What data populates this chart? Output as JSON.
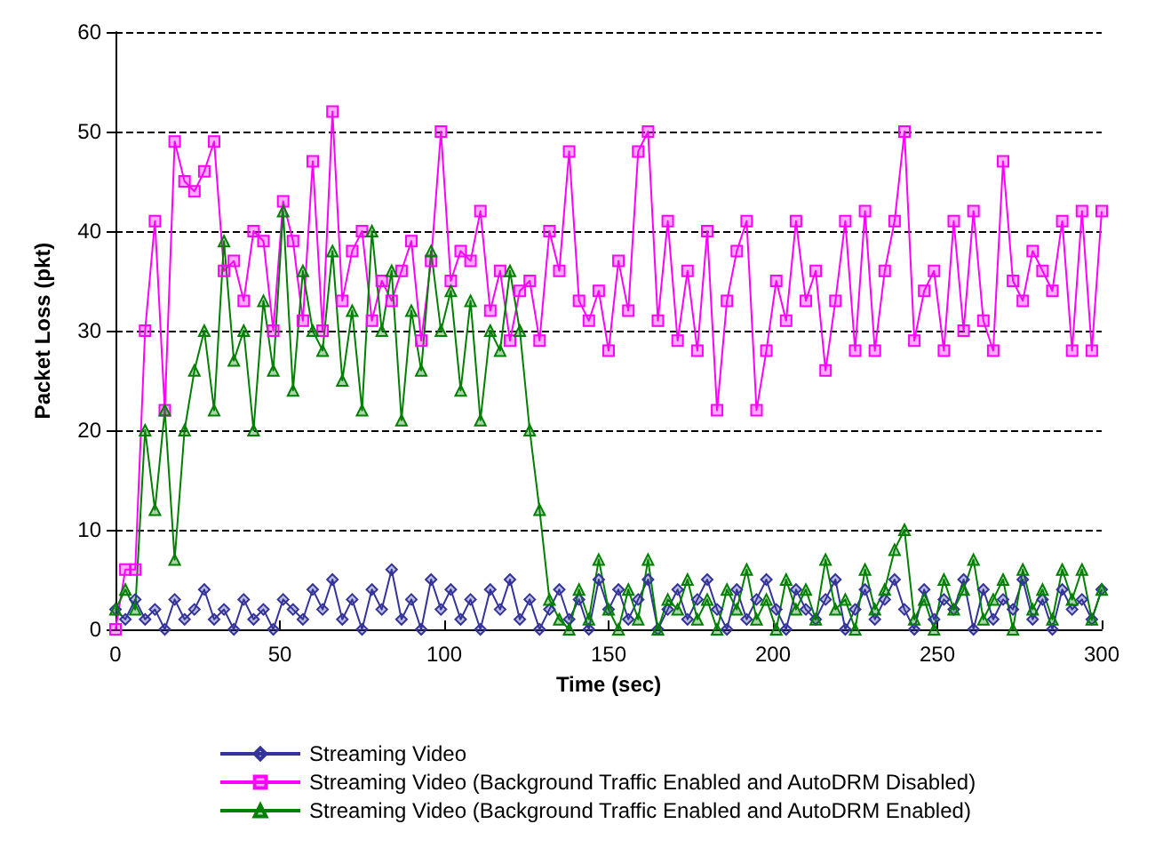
{
  "chart_data": {
    "type": "line",
    "xlabel": "Time (sec)",
    "ylabel": "Packet Loss (pkt)",
    "x": [
      0,
      3,
      6,
      9,
      12,
      15,
      18,
      21,
      24,
      27,
      30,
      33,
      36,
      39,
      42,
      45,
      48,
      51,
      54,
      57,
      60,
      63,
      66,
      69,
      72,
      75,
      78,
      81,
      84,
      87,
      90,
      93,
      96,
      99,
      102,
      105,
      108,
      111,
      114,
      117,
      120,
      123,
      126,
      129,
      132,
      135,
      138,
      141,
      144,
      147,
      150,
      153,
      156,
      159,
      162,
      165,
      168,
      171,
      174,
      177,
      180,
      183,
      186,
      189,
      192,
      195,
      198,
      201,
      204,
      207,
      210,
      213,
      216,
      219,
      222,
      225,
      228,
      231,
      234,
      237,
      240,
      243,
      246,
      249,
      252,
      255,
      258,
      261,
      264,
      267,
      270,
      273,
      276,
      279,
      282,
      285,
      288,
      291,
      294,
      297,
      300
    ],
    "series": [
      {
        "name": "Streaming Video",
        "color": "#333399",
        "marker": "diamond",
        "values": [
          2,
          1,
          3,
          1,
          2,
          0,
          3,
          1,
          2,
          4,
          1,
          2,
          0,
          3,
          1,
          2,
          0,
          3,
          2,
          1,
          4,
          2,
          5,
          1,
          3,
          0,
          4,
          2,
          6,
          1,
          3,
          0,
          5,
          2,
          4,
          1,
          3,
          0,
          4,
          2,
          5,
          1,
          3,
          0,
          2,
          4,
          1,
          3,
          0,
          5,
          2,
          4,
          1,
          3,
          5,
          0,
          2,
          4,
          1,
          3,
          5,
          2,
          0,
          4,
          1,
          3,
          5,
          2,
          0,
          4,
          2,
          1,
          3,
          5,
          0,
          2,
          4,
          1,
          3,
          5,
          2,
          0,
          4,
          1,
          3,
          2,
          5,
          0,
          4,
          1,
          3,
          2,
          5,
          1,
          3,
          0,
          4,
          2,
          3,
          1,
          4
        ]
      },
      {
        "name": "Streaming Video (Background Traffic Enabled and AutoDRM Disabled)",
        "color": "#ff00ff",
        "marker": "square",
        "values": [
          0,
          6,
          6,
          30,
          41,
          22,
          49,
          45,
          44,
          46,
          49,
          36,
          37,
          33,
          40,
          39,
          30,
          43,
          39,
          31,
          47,
          30,
          52,
          33,
          38,
          40,
          31,
          35,
          33,
          36,
          39,
          29,
          37,
          50,
          35,
          38,
          37,
          42,
          32,
          36,
          29,
          34,
          35,
          29,
          40,
          36,
          48,
          33,
          31,
          34,
          28,
          37,
          32,
          48,
          50,
          31,
          41,
          29,
          36,
          28,
          40,
          22,
          33,
          38,
          41,
          22,
          28,
          35,
          31,
          41,
          33,
          36,
          26,
          33,
          41,
          28,
          42,
          28,
          36,
          41,
          50,
          29,
          34,
          36,
          28,
          41,
          30,
          42,
          31,
          28,
          47,
          35,
          33,
          38,
          36,
          34,
          41,
          28,
          42,
          28,
          42
        ]
      },
      {
        "name": "Streaming Video (Background Traffic Enabled and AutoDRM Enabled)",
        "color": "#008000",
        "marker": "triangle",
        "values": [
          2,
          4,
          2,
          20,
          12,
          22,
          7,
          20,
          26,
          30,
          22,
          39,
          27,
          30,
          20,
          33,
          26,
          42,
          24,
          36,
          30,
          28,
          38,
          25,
          32,
          22,
          40,
          30,
          36,
          21,
          32,
          26,
          38,
          30,
          34,
          24,
          33,
          21,
          30,
          28,
          36,
          30,
          20,
          12,
          3,
          1,
          0,
          4,
          1,
          7,
          2,
          0,
          4,
          1,
          7,
          0,
          3,
          2,
          5,
          1,
          3,
          0,
          4,
          2,
          6,
          1,
          3,
          0,
          5,
          2,
          4,
          1,
          7,
          2,
          3,
          0,
          6,
          2,
          4,
          8,
          10,
          1,
          3,
          0,
          5,
          2,
          4,
          7,
          1,
          3,
          5,
          0,
          6,
          2,
          4,
          1,
          6,
          3,
          6,
          1,
          4
        ]
      }
    ],
    "xlim": [
      0,
      300
    ],
    "xticks": [
      0,
      50,
      100,
      150,
      200,
      250,
      300
    ],
    "ylim": [
      0,
      60
    ],
    "yticks": [
      0,
      10,
      20,
      30,
      40,
      50,
      60
    ],
    "grid": "y",
    "legend": "bottom",
    "line_style": "solid"
  }
}
